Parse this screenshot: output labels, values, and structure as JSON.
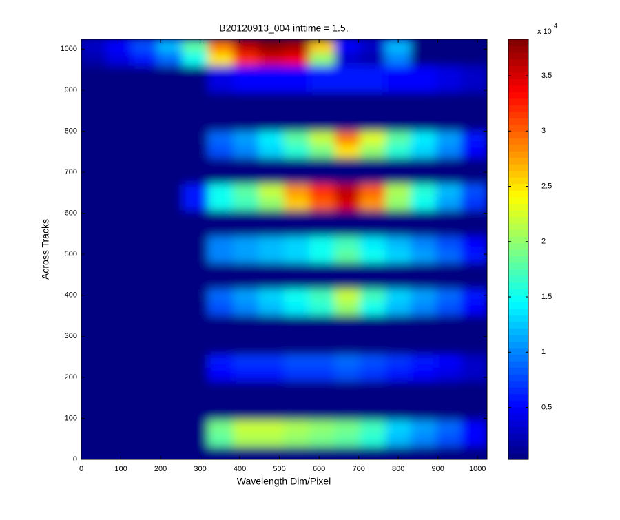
{
  "chart_data": {
    "type": "heatmap",
    "title": "B20120913_004 inttime = 1.5,",
    "xlabel": "Wavelength Dim/Pixel",
    "ylabel": "Across Tracks",
    "colormap": "jet",
    "xlim": [
      0,
      1024
    ],
    "ylim": [
      0,
      1024
    ],
    "xticks": [
      0,
      100,
      200,
      300,
      400,
      500,
      600,
      700,
      800,
      900,
      1000
    ],
    "yticks": [
      0,
      100,
      200,
      300,
      400,
      500,
      600,
      700,
      800,
      900,
      1000
    ],
    "xbins": [
      0,
      64,
      128,
      192,
      256,
      320,
      384,
      448,
      512,
      576,
      640,
      704,
      768,
      832,
      896,
      960,
      1024
    ],
    "ybins": [
      0,
      32,
      64,
      96,
      128,
      160,
      192,
      224,
      256,
      288,
      320,
      352,
      384,
      416,
      448,
      480,
      512,
      544,
      576,
      608,
      640,
      672,
      704,
      736,
      768,
      800,
      832,
      864,
      896,
      928,
      960,
      992,
      1024
    ],
    "clim": [
      0.03,
      3.83
    ],
    "cticks": [
      0.5,
      1,
      1.5,
      2,
      2.5,
      3,
      3.5
    ],
    "colorbar_label": "x 10",
    "colorbar_exponent": "4",
    "z": [
      [
        0.03,
        0.03,
        0.03,
        0.03,
        0.03,
        0.03,
        0.03,
        0.03,
        0.03,
        0.03,
        0.03,
        0.03,
        0.03,
        0.03,
        0.03,
        0.03
      ],
      [
        0.03,
        0.03,
        0.03,
        0.03,
        0.03,
        1.8,
        2.1,
        2.1,
        2.0,
        1.9,
        1.8,
        1.6,
        1.2,
        1.0,
        0.8,
        0.5
      ],
      [
        0.03,
        0.03,
        0.03,
        0.03,
        0.03,
        1.9,
        2.2,
        2.2,
        2.1,
        2.0,
        1.9,
        1.7,
        1.3,
        1.1,
        0.9,
        0.5
      ],
      [
        0.03,
        0.03,
        0.03,
        0.03,
        0.03,
        0.03,
        0.03,
        0.03,
        0.03,
        0.03,
        0.03,
        0.03,
        0.03,
        0.03,
        0.03,
        0.03
      ],
      [
        0.03,
        0.03,
        0.03,
        0.03,
        0.03,
        0.03,
        0.03,
        0.03,
        0.03,
        0.03,
        0.03,
        0.03,
        0.03,
        0.03,
        0.03,
        0.03
      ],
      [
        0.03,
        0.03,
        0.03,
        0.03,
        0.03,
        0.03,
        0.03,
        0.03,
        0.03,
        0.03,
        0.03,
        0.03,
        0.03,
        0.03,
        0.03,
        0.03
      ],
      [
        0.03,
        0.03,
        0.03,
        0.03,
        0.03,
        0.5,
        0.6,
        0.6,
        0.7,
        0.7,
        0.8,
        0.7,
        0.6,
        0.5,
        0.4,
        0.3
      ],
      [
        0.03,
        0.03,
        0.03,
        0.03,
        0.03,
        0.6,
        0.7,
        0.7,
        0.8,
        0.8,
        0.9,
        0.8,
        0.7,
        0.6,
        0.5,
        0.3
      ],
      [
        0.03,
        0.03,
        0.03,
        0.03,
        0.03,
        0.03,
        0.03,
        0.03,
        0.03,
        0.03,
        0.03,
        0.03,
        0.03,
        0.03,
        0.03,
        0.03
      ],
      [
        0.03,
        0.03,
        0.03,
        0.03,
        0.03,
        0.03,
        0.03,
        0.03,
        0.03,
        0.03,
        0.03,
        0.03,
        0.03,
        0.03,
        0.03,
        0.03
      ],
      [
        0.03,
        0.03,
        0.03,
        0.03,
        0.03,
        0.03,
        0.03,
        0.03,
        0.03,
        0.03,
        0.03,
        0.03,
        0.03,
        0.03,
        0.03,
        0.03
      ],
      [
        0.03,
        0.03,
        0.03,
        0.03,
        0.03,
        0.8,
        1.0,
        1.2,
        1.4,
        1.6,
        2.0,
        1.5,
        1.2,
        1.0,
        0.8,
        0.5
      ],
      [
        0.03,
        0.03,
        0.03,
        0.03,
        0.03,
        0.9,
        1.1,
        1.3,
        1.5,
        1.7,
        2.2,
        1.7,
        1.3,
        1.1,
        0.9,
        0.6
      ],
      [
        0.03,
        0.03,
        0.03,
        0.03,
        0.03,
        0.03,
        0.03,
        0.03,
        0.03,
        0.03,
        0.03,
        0.03,
        0.03,
        0.03,
        0.03,
        0.03
      ],
      [
        0.03,
        0.03,
        0.03,
        0.03,
        0.03,
        0.03,
        0.03,
        0.03,
        0.03,
        0.03,
        0.03,
        0.03,
        0.03,
        0.03,
        0.03,
        0.03
      ],
      [
        0.03,
        0.03,
        0.03,
        0.03,
        0.03,
        1.0,
        1.1,
        1.2,
        1.3,
        1.5,
        1.8,
        1.5,
        1.3,
        1.1,
        0.9,
        0.6
      ],
      [
        0.03,
        0.03,
        0.03,
        0.03,
        0.03,
        1.0,
        1.1,
        1.2,
        1.3,
        1.5,
        1.7,
        1.4,
        1.2,
        1.0,
        0.8,
        0.5
      ],
      [
        0.03,
        0.03,
        0.03,
        0.03,
        0.03,
        0.03,
        0.03,
        0.03,
        0.03,
        0.03,
        0.03,
        0.03,
        0.03,
        0.03,
        0.03,
        0.03
      ],
      [
        0.03,
        0.03,
        0.03,
        0.03,
        0.03,
        0.03,
        0.03,
        0.03,
        0.03,
        0.03,
        0.03,
        0.03,
        0.03,
        0.03,
        0.03,
        0.03
      ],
      [
        0.03,
        0.03,
        0.03,
        0.03,
        0.6,
        1.5,
        1.7,
        2.0,
        2.6,
        3.0,
        3.5,
        2.8,
        2.0,
        1.5,
        1.1,
        0.7
      ],
      [
        0.03,
        0.03,
        0.03,
        0.03,
        0.6,
        1.5,
        1.8,
        2.2,
        2.8,
        3.2,
        3.6,
        3.0,
        2.1,
        1.6,
        1.2,
        0.8
      ],
      [
        0.03,
        0.03,
        0.03,
        0.03,
        0.03,
        0.03,
        0.03,
        0.03,
        0.03,
        0.03,
        0.03,
        0.03,
        0.03,
        0.03,
        0.03,
        0.03
      ],
      [
        0.03,
        0.03,
        0.03,
        0.03,
        0.03,
        0.03,
        0.03,
        0.03,
        0.03,
        0.03,
        0.03,
        0.03,
        0.03,
        0.03,
        0.03,
        0.03
      ],
      [
        0.03,
        0.03,
        0.03,
        0.03,
        0.03,
        0.8,
        1.0,
        1.3,
        1.6,
        1.9,
        2.5,
        2.0,
        1.6,
        1.3,
        1.0,
        0.5
      ],
      [
        0.03,
        0.03,
        0.03,
        0.03,
        0.03,
        0.9,
        1.1,
        1.4,
        1.8,
        2.2,
        2.9,
        2.3,
        1.8,
        1.4,
        1.1,
        0.6
      ],
      [
        0.03,
        0.03,
        0.03,
        0.03,
        0.03,
        0.03,
        0.03,
        0.03,
        0.03,
        0.03,
        0.03,
        0.03,
        0.03,
        0.03,
        0.03,
        0.03
      ],
      [
        0.03,
        0.03,
        0.03,
        0.03,
        0.03,
        0.03,
        0.03,
        0.03,
        0.03,
        0.03,
        0.03,
        0.03,
        0.03,
        0.03,
        0.03,
        0.03
      ],
      [
        0.03,
        0.03,
        0.03,
        0.03,
        0.03,
        0.03,
        0.03,
        0.03,
        0.03,
        0.03,
        0.03,
        0.03,
        0.03,
        0.03,
        0.03,
        0.03
      ],
      [
        0.03,
        0.03,
        0.03,
        0.03,
        0.03,
        0.4,
        0.5,
        0.5,
        0.5,
        0.6,
        0.6,
        0.6,
        0.5,
        0.5,
        0.4,
        0.3
      ],
      [
        0.03,
        0.03,
        0.03,
        0.03,
        0.03,
        0.4,
        0.5,
        0.5,
        0.5,
        0.6,
        0.6,
        0.6,
        0.5,
        0.5,
        0.4,
        0.3
      ],
      [
        0.2,
        0.4,
        0.6,
        0.9,
        1.5,
        2.5,
        3.2,
        3.5,
        3.4,
        2.0,
        0.3,
        0.2,
        1.0,
        0.03,
        0.03,
        0.03
      ],
      [
        0.3,
        0.5,
        0.8,
        1.2,
        1.8,
        2.9,
        3.6,
        3.8,
        3.7,
        2.6,
        0.5,
        0.3,
        1.2,
        0.03,
        0.03,
        0.03
      ]
    ]
  }
}
